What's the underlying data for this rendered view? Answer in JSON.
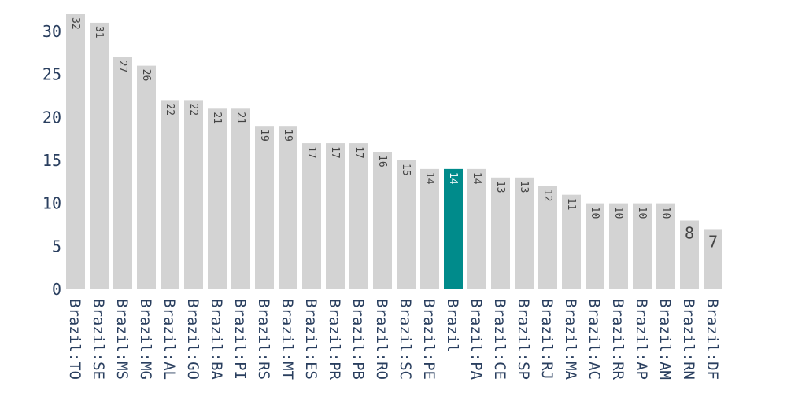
{
  "chart_data": {
    "type": "bar",
    "categories": [
      "Brazil:TO",
      "Brazil:SE",
      "Brazil:MS",
      "Brazil:MG",
      "Brazil:AL",
      "Brazil:GO",
      "Brazil:BA",
      "Brazil:PI",
      "Brazil:RS",
      "Brazil:MT",
      "Brazil:ES",
      "Brazil:PR",
      "Brazil:PB",
      "Brazil:RO",
      "Brazil:SC",
      "Brazil:PE",
      "Brazil",
      "Brazil:PA",
      "Brazil:CE",
      "Brazil:SP",
      "Brazil:RJ",
      "Brazil:MA",
      "Brazil:AC",
      "Brazil:RR",
      "Brazil:AP",
      "Brazil:AM",
      "Brazil:RN",
      "Brazil:DF"
    ],
    "values": [
      32,
      31,
      27,
      26,
      22,
      22,
      21,
      21,
      19,
      19,
      17,
      17,
      17,
      16,
      15,
      14,
      14,
      14,
      13,
      13,
      12,
      11,
      10,
      10,
      10,
      10,
      8,
      7
    ],
    "data_labels": [
      "32",
      "31",
      "27",
      "26",
      "22",
      "22",
      "21",
      "21",
      "19",
      "19",
      "17",
      "17",
      "17",
      "16",
      "15",
      "14",
      "14",
      "14",
      "13",
      "13",
      "12",
      "11",
      "10",
      "10",
      "10",
      "10",
      "8",
      "7"
    ],
    "highlight_category": "Brazil",
    "colors": {
      "default": "#d3d3d3",
      "highlight": "#008b8b",
      "highlight_label": "#ffffff",
      "label": "#444444",
      "tick": "#2a3f5f"
    },
    "yticks": [
      0,
      5,
      10,
      15,
      20,
      25,
      30
    ],
    "ylim": [
      0,
      32
    ],
    "title": "",
    "xlabel": "",
    "ylabel": "",
    "grid": false,
    "legend": "none"
  }
}
